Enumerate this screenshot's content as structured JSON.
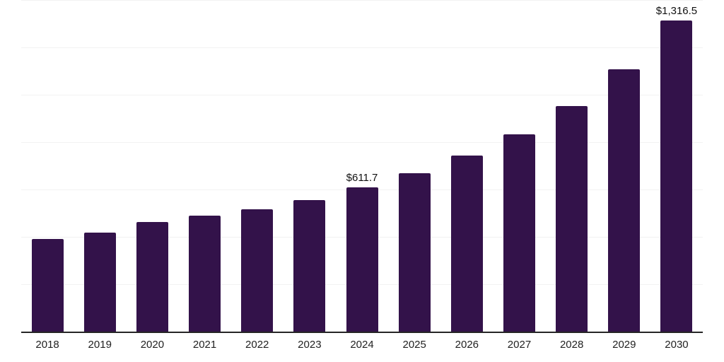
{
  "colors": {
    "bar": "#33124a",
    "axis_line": "#262626",
    "gridline": "#f2f2f2",
    "tick_label": "#222222",
    "value_label": "#111111",
    "background": "#ffffff"
  },
  "chart_data": {
    "type": "bar",
    "title": "",
    "xlabel": "",
    "ylabel": "",
    "categories": [
      "2018",
      "2019",
      "2020",
      "2021",
      "2022",
      "2023",
      "2024",
      "2025",
      "2026",
      "2027",
      "2028",
      "2029",
      "2030"
    ],
    "values": [
      394.6,
      421.6,
      466.4,
      493.3,
      520.3,
      559.0,
      611.7,
      672.0,
      746.9,
      836.6,
      956.3,
      1111.6,
      1316.5
    ],
    "point_labels": [
      "",
      "",
      "",
      "",
      "",
      "",
      "$611.7",
      "",
      "",
      "",
      "",
      "",
      "$1,316.5"
    ],
    "ylim": [
      0,
      1400
    ],
    "gridline_values": [
      200,
      400,
      600,
      800,
      1000,
      1200,
      1400
    ],
    "grid": true,
    "legend": false,
    "y_axis_labels_visible": false
  }
}
